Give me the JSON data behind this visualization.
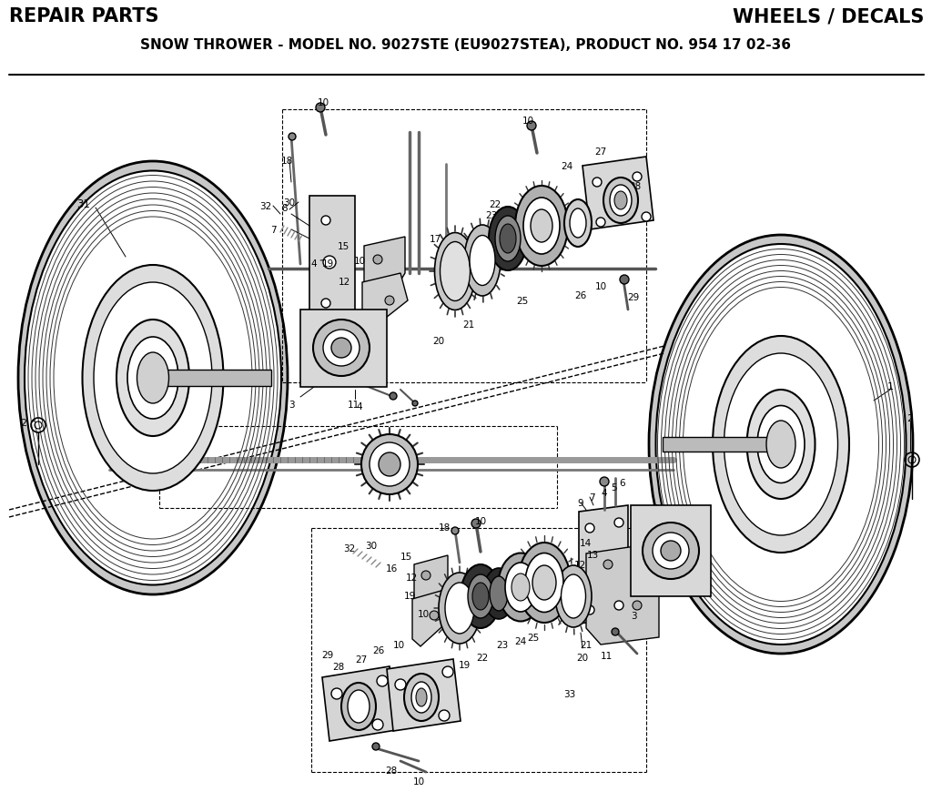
{
  "title_left": "REPAIR PARTS",
  "title_right": "WHEELS / DECALS",
  "subtitle": "SNOW THROWER - MODEL NO. 9027STE (EU9027STEA), PRODUCT NO. 954 17 02-36",
  "bg_color": "#ffffff",
  "text_color": "#000000",
  "line_color": "#000000",
  "fig_width": 10.24,
  "fig_height": 8.81,
  "dpi": 100
}
